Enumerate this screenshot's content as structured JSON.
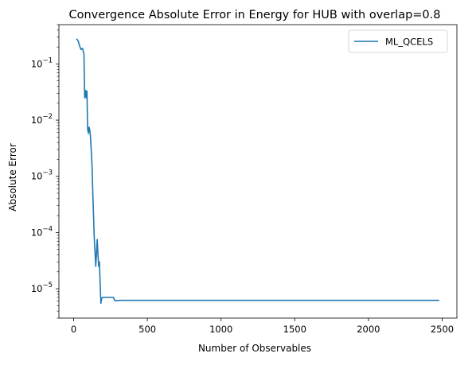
{
  "chart_data": {
    "type": "line",
    "title": "Convergence Absolute Error in Energy for HUB with overlap=0.8",
    "xlabel": "Number of Observables",
    "ylabel": "Absolute Error",
    "xlim": [
      -100,
      2600
    ],
    "ylim": [
      3e-06,
      0.5
    ],
    "yscale": "log",
    "grid": false,
    "legend_position": "top-right",
    "x_ticks": [
      {
        "value": 0,
        "label": "0"
      },
      {
        "value": 500,
        "label": "500"
      },
      {
        "value": 1000,
        "label": "1000"
      },
      {
        "value": 1500,
        "label": "1500"
      },
      {
        "value": 2000,
        "label": "2000"
      },
      {
        "value": 2500,
        "label": "2500"
      }
    ],
    "y_ticks": [
      {
        "value": 0.1,
        "base": "10",
        "exp": "−1"
      },
      {
        "value": 0.01,
        "base": "10",
        "exp": "−2"
      },
      {
        "value": 0.001,
        "base": "10",
        "exp": "−3"
      },
      {
        "value": 0.0001,
        "base": "10",
        "exp": "−4"
      },
      {
        "value": 1e-05,
        "base": "10",
        "exp": "−5"
      }
    ],
    "series": [
      {
        "name": "ML_QCELS",
        "color": "#1f77b4",
        "points": [
          [
            20,
            0.28
          ],
          [
            30,
            0.26
          ],
          [
            40,
            0.21
          ],
          [
            50,
            0.18
          ],
          [
            60,
            0.19
          ],
          [
            70,
            0.15
          ],
          [
            75,
            0.025
          ],
          [
            80,
            0.034
          ],
          [
            85,
            0.025
          ],
          [
            90,
            0.033
          ],
          [
            95,
            0.007
          ],
          [
            100,
            0.0058
          ],
          [
            105,
            0.0075
          ],
          [
            110,
            0.0065
          ],
          [
            115,
            0.0048
          ],
          [
            125,
            0.0015
          ],
          [
            130,
            0.0005
          ],
          [
            135,
            0.0002
          ],
          [
            140,
            8e-05
          ],
          [
            150,
            2.5e-05
          ],
          [
            160,
            7.5e-05
          ],
          [
            165,
            4e-05
          ],
          [
            170,
            2.5e-05
          ],
          [
            175,
            3e-05
          ],
          [
            180,
            1.2e-05
          ],
          [
            185,
            5.5e-06
          ],
          [
            190,
            6.8e-06
          ],
          [
            200,
            7e-06
          ],
          [
            270,
            7e-06
          ],
          [
            280,
            6.1e-06
          ],
          [
            320,
            6.2e-06
          ],
          [
            2480,
            6.2e-06
          ]
        ]
      }
    ]
  }
}
